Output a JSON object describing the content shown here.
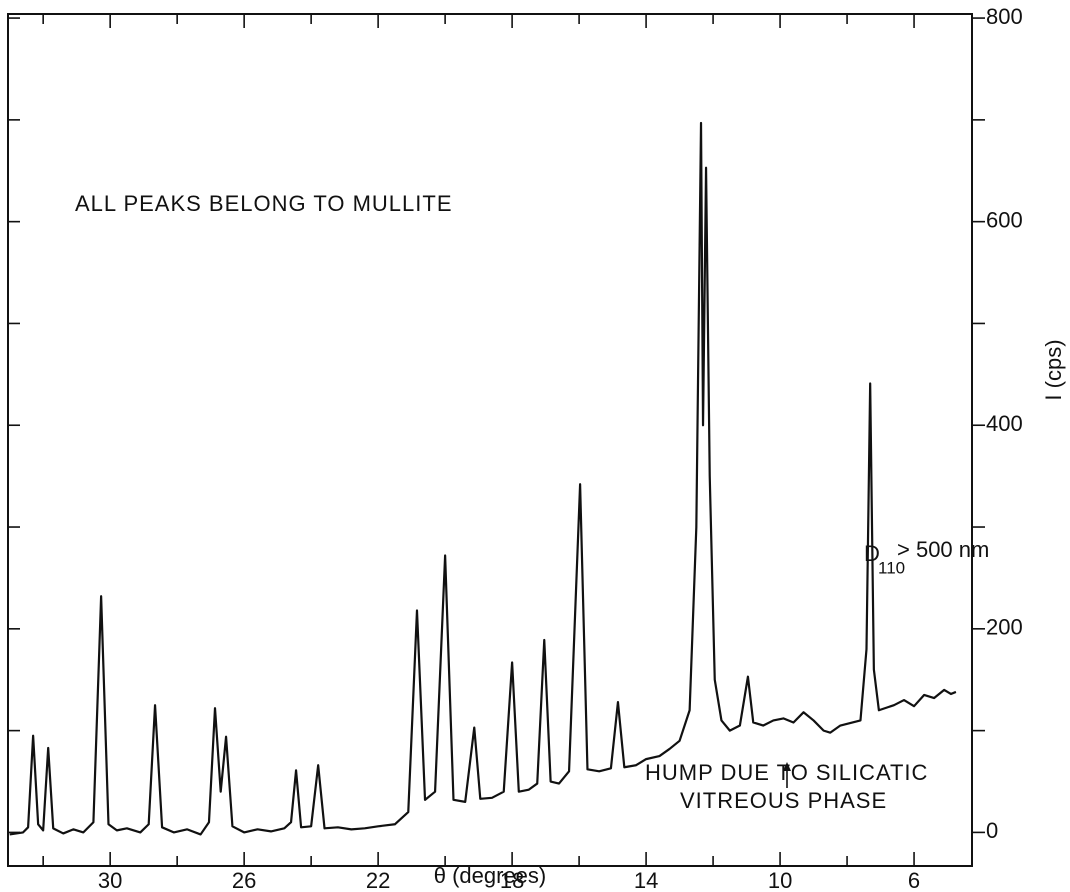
{
  "chart_data": {
    "type": "line",
    "x_label": "θ (degrees)",
    "y_label": "I (cps)",
    "color": "#111111",
    "xlim": [
      33.05,
      4.27
    ],
    "ylim": [
      -33,
      804
    ],
    "xticks": [
      30,
      26,
      22,
      18,
      14,
      10,
      6
    ],
    "x_minor_ticks": [
      32,
      28,
      24,
      20,
      16,
      12,
      8
    ],
    "yticks": [
      0,
      200,
      400,
      600,
      800
    ],
    "y_minor_ticks": [
      100,
      300,
      500,
      700
    ],
    "annotations": [
      {
        "text": "ALL PEAKS BELONG TO MULLITE"
      },
      {
        "text": "HUMP DUE TO SILICATIC"
      },
      {
        "text": "VITREOUS PHASE"
      },
      {
        "text": "D",
        "subscript": "110",
        "suffix": "> 500 nm"
      }
    ],
    "x": [
      33.0,
      32.6,
      32.45,
      32.3,
      32.15,
      32.0,
      31.85,
      31.7,
      31.4,
      31.1,
      30.8,
      30.5,
      30.27,
      30.05,
      29.8,
      29.5,
      29.1,
      28.85,
      28.66,
      28.45,
      28.1,
      27.7,
      27.3,
      27.05,
      26.87,
      26.7,
      26.54,
      26.35,
      26.0,
      25.6,
      25.2,
      24.8,
      24.6,
      24.45,
      24.3,
      24.0,
      23.79,
      23.6,
      23.2,
      22.8,
      22.4,
      22.0,
      21.5,
      21.1,
      20.84,
      20.6,
      20.3,
      20.0,
      19.75,
      19.4,
      19.13,
      18.95,
      18.6,
      18.25,
      18.0,
      17.8,
      17.5,
      17.25,
      17.04,
      16.85,
      16.6,
      16.3,
      15.97,
      15.75,
      15.4,
      15.05,
      14.84,
      14.65,
      14.3,
      14.0,
      13.6,
      13.3,
      13.0,
      12.7,
      12.5,
      12.36,
      12.3,
      12.21,
      12.1,
      11.95,
      11.75,
      11.5,
      11.2,
      10.96,
      10.8,
      10.5,
      10.2,
      9.9,
      9.6,
      9.3,
      9.0,
      8.7,
      8.5,
      8.2,
      7.6,
      7.42,
      7.31,
      7.2,
      7.05,
      6.6,
      6.3,
      6.0,
      5.7,
      5.4,
      5.1,
      4.9,
      4.75
    ],
    "values": [
      -2,
      0,
      5,
      95,
      8,
      2,
      83,
      4,
      -1,
      3,
      0,
      10,
      232,
      8,
      2,
      4,
      0,
      8,
      125,
      5,
      0,
      3,
      -2,
      10,
      122,
      40,
      94,
      6,
      0,
      3,
      1,
      4,
      10,
      61,
      5,
      6,
      66,
      4,
      5,
      3,
      4,
      6,
      8,
      20,
      218,
      32,
      40,
      272,
      32,
      30,
      103,
      33,
      34,
      40,
      167,
      40,
      42,
      48,
      189,
      50,
      48,
      60,
      342,
      62,
      60,
      63,
      128,
      64,
      66,
      72,
      75,
      82,
      90,
      120,
      300,
      697,
      400,
      653,
      350,
      150,
      110,
      100,
      105,
      153,
      108,
      105,
      110,
      112,
      108,
      118,
      110,
      100,
      98,
      105,
      110,
      180,
      441,
      160,
      120,
      125,
      130,
      124,
      135,
      132,
      140,
      136,
      138
    ]
  }
}
